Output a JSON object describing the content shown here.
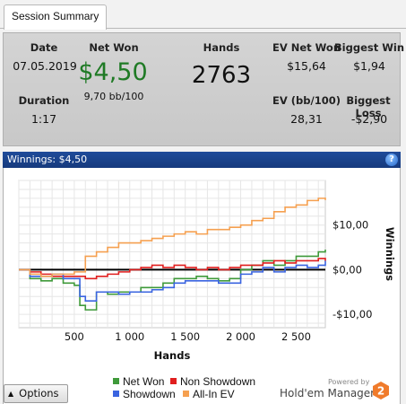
{
  "tab": {
    "label": "Session Summary"
  },
  "summary": {
    "date_label": "Date",
    "date_value": "07.05.2019",
    "duration_label": "Duration",
    "duration_value": "1:17",
    "net_won_label": "Net Won",
    "net_won_value": "$4,50",
    "net_won_bb": "9,70 bb/100",
    "hands_label": "Hands",
    "hands_value": "2763",
    "ev_net_won_label": "EV Net Won",
    "ev_net_won_value": "$15,64",
    "biggest_win_label": "Biggest Win",
    "biggest_win_value": "$1,94",
    "ev_bb_label": "EV (bb/100)",
    "ev_bb_value": "28,31",
    "biggest_loss_label": "Biggest Loss",
    "biggest_loss_value": "-$2,90"
  },
  "panel": {
    "title": "Winnings: $4,50",
    "help_icon": "help-icon"
  },
  "chart_data": {
    "type": "line",
    "xlabel": "Hands",
    "ylabel": "Winnings",
    "xlim": [
      0,
      2763
    ],
    "ylim": [
      -13,
      20
    ],
    "x_ticks": [
      500,
      1000,
      1500,
      2000,
      2500
    ],
    "x_tick_labels": [
      "500",
      "1 000",
      "1 500",
      "2 000",
      "2 500"
    ],
    "y_ticks": [
      10,
      0,
      -10
    ],
    "y_tick_labels": [
      "$10,00",
      "$0,00",
      "-$10,00"
    ],
    "grid": true,
    "legend_position": "bottom",
    "series": [
      {
        "name": "Net Won",
        "color": "#3f9a3a",
        "x": [
          0,
          100,
          200,
          300,
          400,
          500,
          550,
          600,
          700,
          800,
          900,
          1000,
          1100,
          1200,
          1300,
          1400,
          1500,
          1600,
          1700,
          1800,
          1900,
          2000,
          2100,
          2200,
          2300,
          2400,
          2500,
          2600,
          2700,
          2763
        ],
        "y": [
          0,
          -2,
          -2.5,
          -2,
          -3,
          -3.5,
          -8,
          -9,
          -5,
          -5.5,
          -5,
          -5,
          -4,
          -4,
          -3,
          -2,
          -2,
          -1.5,
          -2,
          -2.5,
          -2,
          0,
          1,
          2,
          1,
          2,
          3,
          3,
          4,
          4.5
        ]
      },
      {
        "name": "Non Showdown",
        "color": "#e01f1f",
        "x": [
          0,
          100,
          200,
          300,
          400,
          500,
          600,
          700,
          800,
          900,
          1000,
          1100,
          1200,
          1300,
          1400,
          1500,
          1600,
          1700,
          1800,
          1900,
          2000,
          2100,
          2200,
          2300,
          2400,
          2500,
          2600,
          2700,
          2763
        ],
        "y": [
          0,
          -0.5,
          -1,
          -1.5,
          -1.5,
          -1.5,
          -2,
          -1.5,
          -1,
          -0.5,
          0,
          0.5,
          1,
          0.5,
          1,
          0.5,
          0,
          0.5,
          0,
          0.5,
          1,
          1,
          1.5,
          2,
          1.5,
          2,
          2,
          2.5,
          2
        ]
      },
      {
        "name": "Showdown",
        "color": "#3a64e0",
        "x": [
          0,
          100,
          200,
          300,
          400,
          500,
          550,
          600,
          700,
          800,
          900,
          1000,
          1100,
          1200,
          1300,
          1400,
          1500,
          1600,
          1700,
          1800,
          1900,
          2000,
          2100,
          2200,
          2300,
          2400,
          2500,
          2600,
          2700,
          2763
        ],
        "y": [
          0,
          -1.5,
          -1.5,
          -1,
          -2,
          -2,
          -6,
          -7,
          -5,
          -5,
          -5.5,
          -5,
          -5,
          -4.5,
          -4,
          -3,
          -2.5,
          -2.5,
          -2.5,
          -3,
          -3,
          -1,
          -0.5,
          0.5,
          -0.5,
          0.5,
          1,
          0.5,
          1,
          2
        ]
      },
      {
        "name": "All-In EV",
        "color": "#f5a050",
        "x": [
          0,
          100,
          200,
          300,
          400,
          500,
          600,
          700,
          800,
          900,
          1000,
          1100,
          1200,
          1300,
          1400,
          1500,
          1600,
          1700,
          1800,
          1900,
          2000,
          2100,
          2200,
          2300,
          2400,
          2500,
          2600,
          2700,
          2763
        ],
        "y": [
          0,
          -1,
          -1.5,
          -1,
          -1,
          -0.5,
          3,
          4,
          5,
          6,
          6,
          6.5,
          7,
          7.5,
          8,
          8.5,
          8,
          9,
          9,
          9.5,
          10,
          11,
          11.5,
          13,
          14,
          14.5,
          15.5,
          16,
          15.6
        ]
      }
    ]
  },
  "options": {
    "label": "Options",
    "arrow_icon": "triangle-up-icon"
  },
  "branding": {
    "powered_by": "Powered by",
    "name": "Hold'em Manager",
    "logo_text": "2"
  }
}
